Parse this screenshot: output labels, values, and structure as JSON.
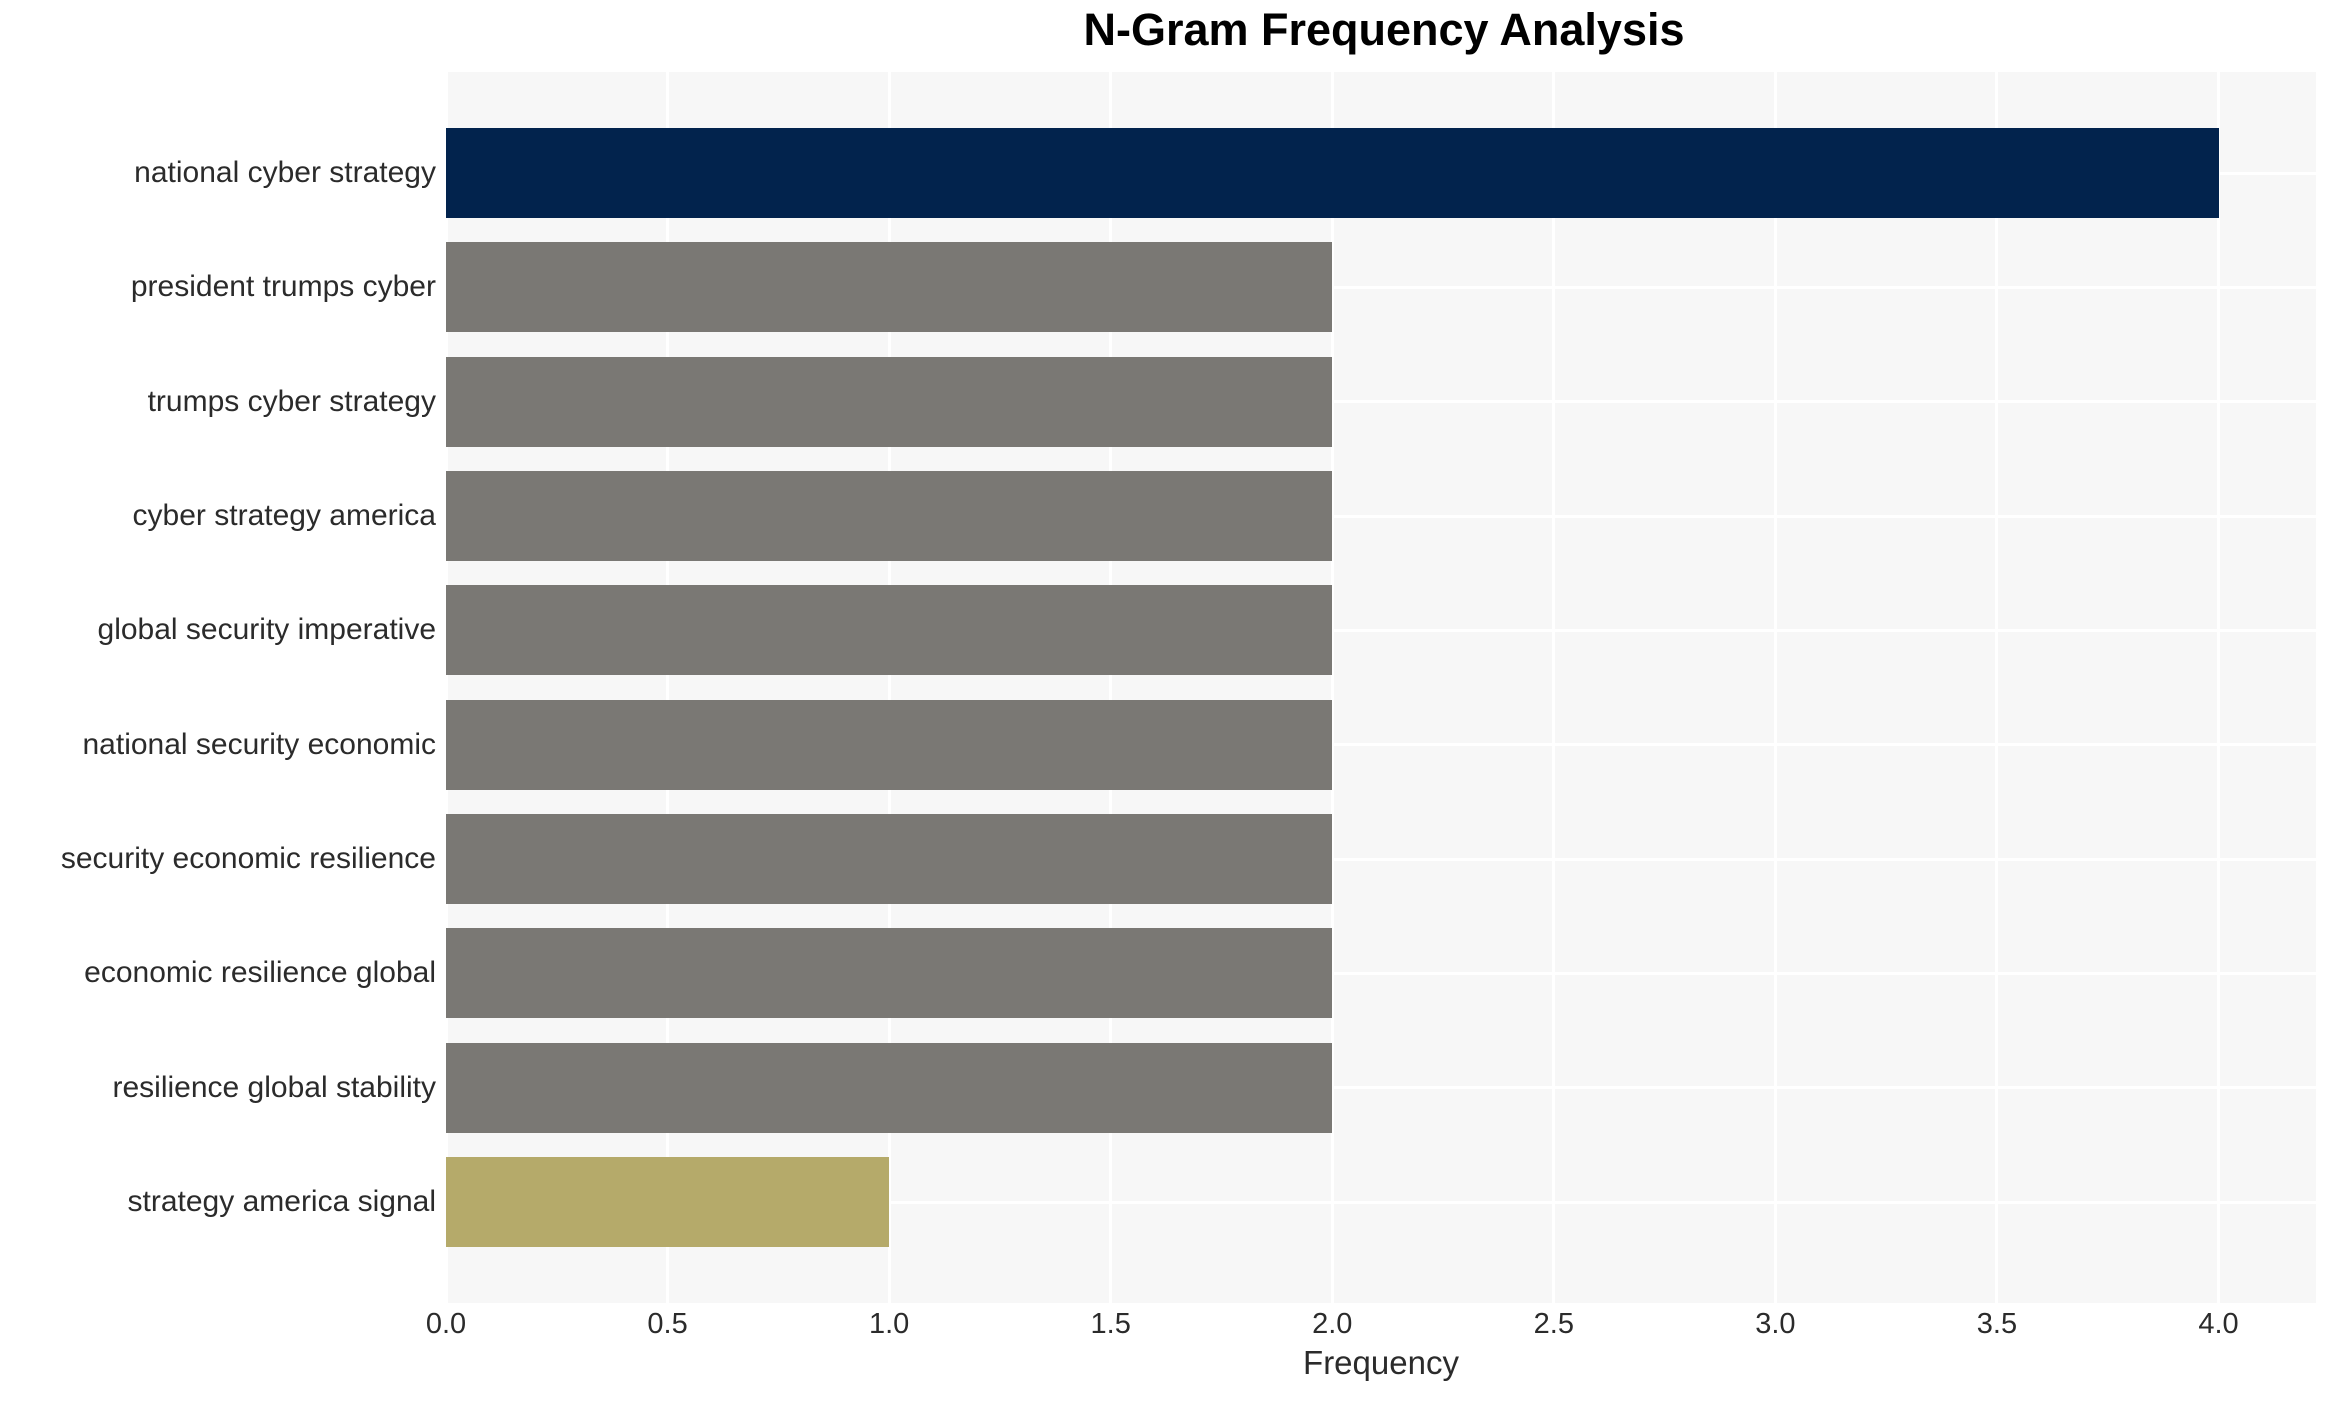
{
  "title": "N-Gram Frequency Analysis",
  "chart_data": {
    "type": "bar",
    "orientation": "horizontal",
    "title": "N-Gram Frequency Analysis",
    "xlabel": "Frequency",
    "ylabel": "",
    "categories": [
      "national cyber strategy",
      "president trumps cyber",
      "trumps cyber strategy",
      "cyber strategy america",
      "global security imperative",
      "national security economic",
      "security economic resilience",
      "economic resilience global",
      "resilience global stability",
      "strategy america signal"
    ],
    "values": [
      4,
      2,
      2,
      2,
      2,
      2,
      2,
      2,
      2,
      1
    ],
    "bar_colors": [
      "#02234d",
      "#7a7874",
      "#7a7874",
      "#7a7874",
      "#7a7874",
      "#7a7874",
      "#7a7874",
      "#7a7874",
      "#7a7874",
      "#b5aa6a"
    ],
    "xticks": [
      0,
      0.5,
      1,
      1.5,
      2,
      2.5,
      3,
      3.5,
      4
    ],
    "xtick_labels": [
      "0.0",
      "0.5",
      "1.0",
      "1.5",
      "2.0",
      "2.5",
      "3.0",
      "3.5",
      "4.0"
    ],
    "xlim": [
      0,
      4.22
    ],
    "grid": true,
    "legend": false,
    "plot_background": "#f7f7f7",
    "gridline_color": "#ffffff",
    "text_color": "#2b2b2b"
  }
}
